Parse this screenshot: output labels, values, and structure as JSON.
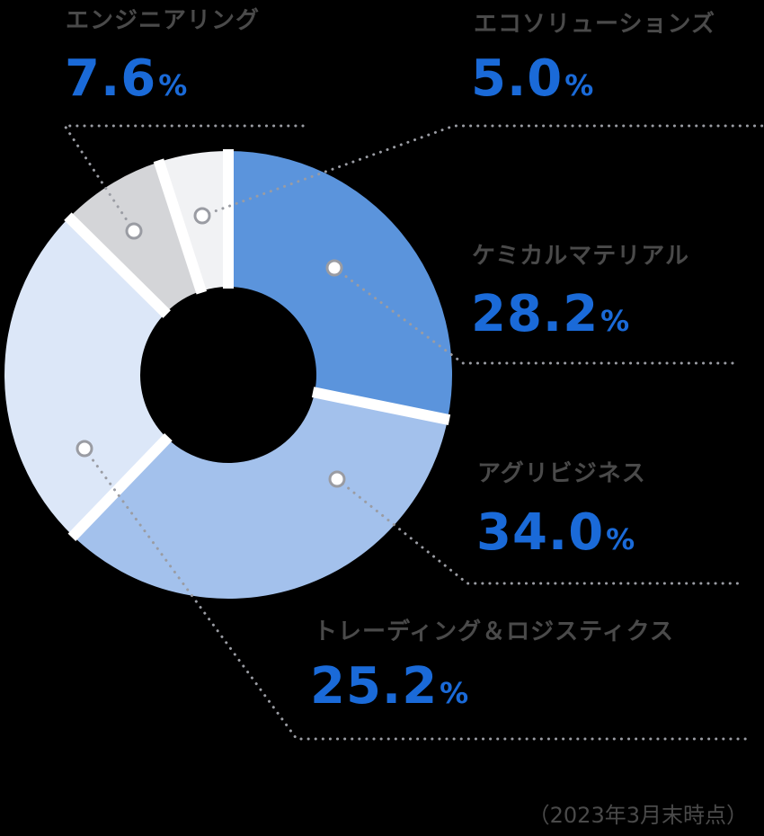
{
  "chart_data": {
    "type": "pie",
    "variant": "donut",
    "title": "",
    "unit": "%",
    "categories": [
      "ケミカルマテリアル",
      "アグリビジネス",
      "トレーディング＆ロジスティクス",
      "エンジニアリング",
      "エコソリューションズ"
    ],
    "values": [
      28.2,
      34.0,
      25.2,
      7.6,
      5.0
    ],
    "colors": [
      "#5b94dc",
      "#a3c1ec",
      "#dce7f8",
      "#d4d5d8",
      "#f1f2f4"
    ],
    "start_angle_deg": 0,
    "direction": "clockwise",
    "annotation": "（2023年3月末時点）",
    "legend": "callout labels with dotted leader lines"
  },
  "segments": [
    {
      "label": "ケミカルマテリアル",
      "value": "28.2",
      "unit": "%"
    },
    {
      "label": "アグリビジネス",
      "value": "34.0",
      "unit": "%"
    },
    {
      "label": "トレーディング＆ロジスティクス",
      "value": "25.2",
      "unit": "%"
    },
    {
      "label": "エンジニアリング",
      "value": "7.6",
      "unit": "%"
    },
    {
      "label": "エコソリューションズ",
      "value": "5.0",
      "unit": "%"
    }
  ],
  "footnote": "（2023年3月末時点）",
  "colors": {
    "value_text": "#1a6ad8",
    "label_text": "#4a4a4a",
    "leader_line": "#9a9ca3",
    "gap": "#ffffff"
  }
}
